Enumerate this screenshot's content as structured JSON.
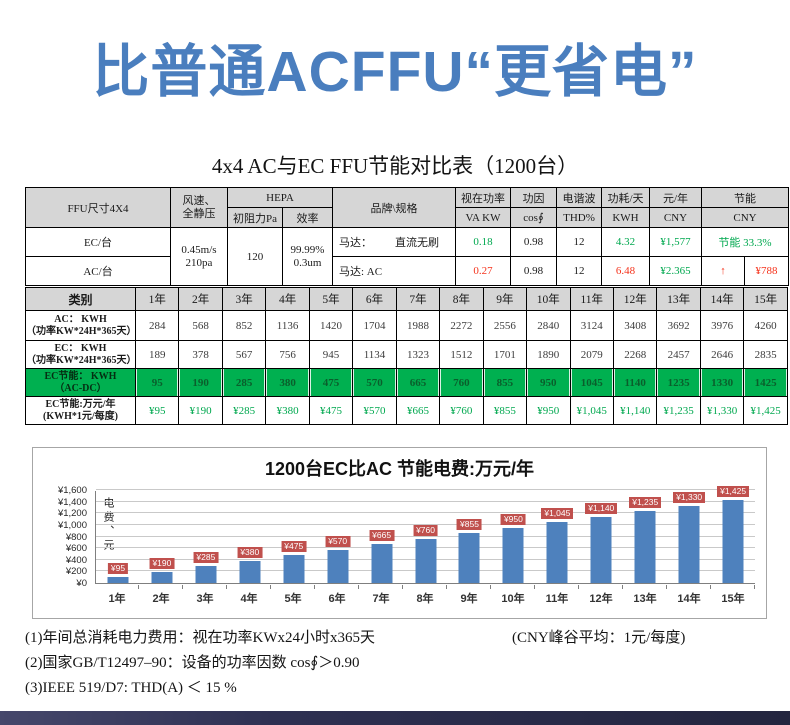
{
  "page": {
    "title": "比普通ACFFU“更省电”",
    "subtitle": "4x4 AC与EC FFU节能对比表（1200台）"
  },
  "colors": {
    "title_blue": "#4A7EBE",
    "bar_blue": "#4E81BD",
    "data_label_red": "#C0504D",
    "green": "#00A84F",
    "red": "#F5331C",
    "header_gray": "#D6D6D6",
    "highlight_green_bg": "#00B050",
    "footer_navy": "#2E3052"
  },
  "spec_table": {
    "headers": {
      "ffu_size": "FFU尺寸4X4",
      "wind_1": "风速、",
      "wind_2": "全静压",
      "hepa": "HEPA",
      "resistance": "初阻力Pa",
      "efficiency": "效率",
      "brand": "品牌\\规格",
      "apparent_power": "视在功率",
      "va_kw": "VA KW",
      "power_factor": "功因",
      "cos": "cos∮",
      "harmonic": "电谐波",
      "thd": "THD%",
      "consumption_day": "功耗/天",
      "kwh": "KWH",
      "yuan_year": "元/年",
      "cny": "CNY",
      "saving": "节能",
      "saving_cny": "CNY"
    },
    "shared": {
      "wind_1": "0.45m/s",
      "wind_2": "210pa",
      "resistance": "120",
      "eff_1": "99.99%",
      "eff_2": "0.3um"
    },
    "rows": {
      "ec": {
        "label": "EC/台",
        "motor_label": "马达：",
        "motor_value": "直流无刷",
        "va": "0.18",
        "cos": "0.98",
        "thd": "12",
        "kwh": "4.32",
        "cny": "¥1,577",
        "saving": "节能 33.3%"
      },
      "ac": {
        "label": "AC/台",
        "motor": "马达: AC",
        "va": "0.27",
        "cos": "0.98",
        "thd": "12",
        "kwh": "6.48",
        "cny": "¥2.365",
        "arrow": "↑",
        "saving": "¥788"
      }
    }
  },
  "year_table": {
    "category_header": "类别",
    "years": [
      "1年",
      "2年",
      "3年",
      "4年",
      "5年",
      "6年",
      "7年",
      "8年",
      "9年",
      "10年",
      "11年",
      "12年",
      "13年",
      "14年",
      "15年"
    ],
    "rows": [
      {
        "label": "AC： KWH",
        "sublabel": "（功率KW*24H*365天）",
        "style": "plain",
        "values": [
          "284",
          "568",
          "852",
          "1136",
          "1420",
          "1704",
          "1988",
          "2272",
          "2556",
          "2840",
          "3124",
          "3408",
          "3692",
          "3976",
          "4260"
        ]
      },
      {
        "label": "EC： KWH",
        "sublabel": "（功率KW*24H*365天）",
        "style": "plain",
        "values": [
          "189",
          "378",
          "567",
          "756",
          "945",
          "1134",
          "1323",
          "1512",
          "1701",
          "1890",
          "2079",
          "2268",
          "2457",
          "2646",
          "2835"
        ]
      },
      {
        "label": "EC节能： KWH",
        "sublabel": "（AC-DC）",
        "style": "highlight",
        "values": [
          "95",
          "190",
          "285",
          "380",
          "475",
          "570",
          "665",
          "760",
          "855",
          "950",
          "1045",
          "1140",
          "1235",
          "1330",
          "1425"
        ]
      },
      {
        "label": "EC节能:万元/年",
        "sublabel": "(KWH*1元/每度)",
        "style": "money",
        "values": [
          "¥95",
          "¥190",
          "¥285",
          "¥380",
          "¥475",
          "¥570",
          "¥665",
          "¥760",
          "¥855",
          "¥950",
          "¥1,045",
          "¥1,140",
          "¥1,235",
          "¥1,330",
          "¥1,425"
        ]
      }
    ]
  },
  "chart_data": {
    "type": "bar",
    "title": "1200台EC比AC 节能电费:万元/年",
    "categories": [
      "1年",
      "2年",
      "3年",
      "4年",
      "5年",
      "6年",
      "7年",
      "8年",
      "9年",
      "10年",
      "11年",
      "12年",
      "13年",
      "14年",
      "15年"
    ],
    "values": [
      95,
      190,
      285,
      380,
      475,
      570,
      665,
      760,
      855,
      950,
      1045,
      1140,
      1235,
      1330,
      1425
    ],
    "labels": [
      "¥95",
      "¥190",
      "¥285",
      "¥380",
      "¥475",
      "¥570",
      "¥665",
      "¥760",
      "¥855",
      "¥950",
      "¥1,045",
      "¥1,140",
      "¥1,235",
      "¥1,330",
      "¥1,425"
    ],
    "xlabel": "",
    "ylabel": "电费、元",
    "ylim": [
      0,
      1600
    ],
    "ytick_labels": [
      "¥0",
      "¥200",
      "¥400",
      "¥600",
      "¥800",
      "¥1,000",
      "¥1,200",
      "¥1,400",
      "¥1,600"
    ],
    "grid": true,
    "legend_position": "none",
    "bar_color": "#4E81BD",
    "label_bg": "#C0504D"
  },
  "footnotes": {
    "line1": "(1)年间总消耗电力费用：视在功率KWx24小时x365天",
    "line1_right": "(CNY峰谷平均：1元/每度)",
    "line2": "(2)国家GB/T12497–90：设备的功率因数 cos∮＞0.90",
    "line3": "(3)IEEE 519/D7: THD(A) ＜ 15 %"
  }
}
